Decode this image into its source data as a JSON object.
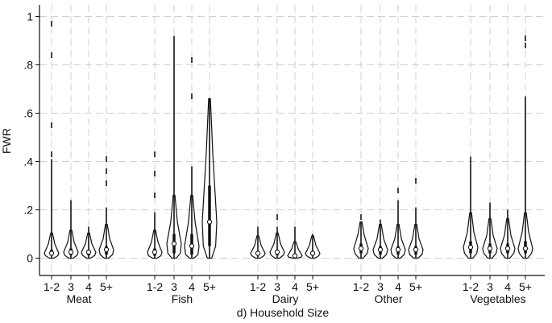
{
  "chart_data": {
    "type": "violin",
    "title": "",
    "xlabel": "d) Household Size",
    "ylabel": "FWR",
    "ylim": [
      0,
      1
    ],
    "yticks": [
      0,
      0.2,
      0.4,
      0.6,
      0.8,
      1
    ],
    "ytick_labels": [
      "0",
      ".2",
      ".4",
      ".6",
      ".8",
      "1"
    ],
    "grid": true,
    "groups": [
      {
        "name": "Meat",
        "violins": [
          {
            "size": "1-2",
            "whisker_max": 0.41,
            "q3": 0.035,
            "median": 0.02,
            "q1": 0.01,
            "outliers": [
              0.43,
              0.55,
              0.84,
              0.97
            ]
          },
          {
            "size": "3",
            "whisker_max": 0.24,
            "q3": 0.04,
            "median": 0.025,
            "q1": 0.012,
            "outliers": []
          },
          {
            "size": "4",
            "whisker_max": 0.13,
            "q3": 0.035,
            "median": 0.025,
            "q1": 0.012,
            "outliers": []
          },
          {
            "size": "5+",
            "whisker_max": 0.21,
            "q3": 0.05,
            "median": 0.035,
            "q1": 0.015,
            "outliers": [
              0.31,
              0.36,
              0.41
            ]
          }
        ]
      },
      {
        "name": "Fish",
        "violins": [
          {
            "size": "1-2",
            "whisker_max": 0.19,
            "q3": 0.04,
            "median": 0.025,
            "q1": 0.01,
            "outliers": [
              0.26,
              0.35,
              0.43
            ]
          },
          {
            "size": "3",
            "whisker_max": 0.92,
            "q3": 0.1,
            "median": 0.06,
            "q1": 0.02,
            "outliers": []
          },
          {
            "size": "4",
            "whisker_max": 0.38,
            "q3": 0.1,
            "median": 0.05,
            "q1": 0.015,
            "outliers": [
              0.67,
              0.82
            ]
          },
          {
            "size": "5+",
            "whisker_max": 0.66,
            "q3": 0.3,
            "median": 0.15,
            "q1": 0.05,
            "outliers": []
          }
        ]
      },
      {
        "name": "Dairy",
        "violins": [
          {
            "size": "1-2",
            "whisker_max": 0.13,
            "q3": 0.03,
            "median": 0.02,
            "q1": 0.01,
            "outliers": []
          },
          {
            "size": "3",
            "whisker_max": 0.13,
            "q3": 0.035,
            "median": 0.025,
            "q1": 0.012,
            "outliers": [
              0.17
            ]
          },
          {
            "size": "4",
            "whisker_max": 0.13,
            "q3": 0.02,
            "median": 0.01,
            "q1": 0.004,
            "outliers": []
          },
          {
            "size": "5+",
            "whisker_max": 0.1,
            "q3": 0.03,
            "median": 0.02,
            "q1": 0.01,
            "outliers": []
          }
        ]
      },
      {
        "name": "Other",
        "violins": [
          {
            "size": "1-2",
            "whisker_max": 0.15,
            "q3": 0.06,
            "median": 0.04,
            "q1": 0.02,
            "outliers": [
              0.17
            ]
          },
          {
            "size": "3",
            "whisker_max": 0.16,
            "q3": 0.05,
            "median": 0.035,
            "q1": 0.015,
            "outliers": []
          },
          {
            "size": "4",
            "whisker_max": 0.24,
            "q3": 0.05,
            "median": 0.035,
            "q1": 0.015,
            "outliers": [
              0.28
            ]
          },
          {
            "size": "5+",
            "whisker_max": 0.21,
            "q3": 0.05,
            "median": 0.035,
            "q1": 0.015,
            "outliers": [
              0.32
            ]
          }
        ]
      },
      {
        "name": "Vegetables",
        "violins": [
          {
            "size": "1-2",
            "whisker_max": 0.42,
            "q3": 0.07,
            "median": 0.045,
            "q1": 0.02,
            "outliers": []
          },
          {
            "size": "3",
            "whisker_max": 0.23,
            "q3": 0.06,
            "median": 0.04,
            "q1": 0.02,
            "outliers": []
          },
          {
            "size": "4",
            "whisker_max": 0.2,
            "q3": 0.06,
            "median": 0.04,
            "q1": 0.02,
            "outliers": []
          },
          {
            "size": "5+",
            "whisker_max": 0.67,
            "q3": 0.07,
            "median": 0.04,
            "q1": 0.02,
            "outliers": [
              0.88,
              0.91
            ]
          }
        ]
      }
    ]
  }
}
